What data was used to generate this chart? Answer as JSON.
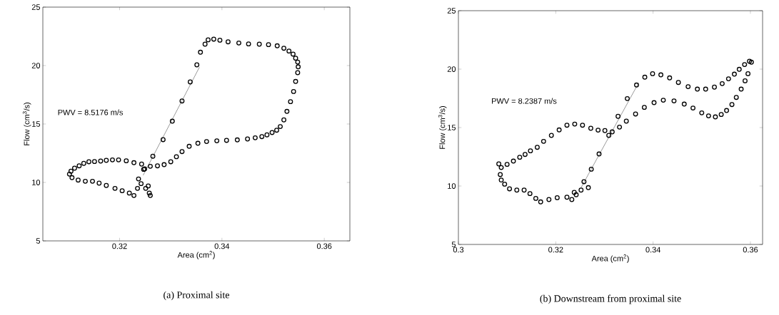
{
  "chart_data": [
    {
      "type": "scatter",
      "xlabel": "Area (cm$^{2}$)",
      "ylabel": "Flow (cm$^{3}$/s)",
      "xlim": [
        0.305,
        0.365
      ],
      "ylim": [
        5,
        25
      ],
      "xticks": [
        0.32,
        0.34,
        0.36
      ],
      "yticks": [
        5,
        10,
        15,
        20,
        25
      ],
      "series": [
        {
          "marker": "circle",
          "color": "#000000",
          "x": [
            0.3247,
            0.3265,
            0.3285,
            0.3303,
            0.3322,
            0.3338,
            0.3351,
            0.3358,
            0.3367,
            0.3373,
            0.3384,
            0.3396,
            0.3412,
            0.3433,
            0.3452,
            0.3473,
            0.3491,
            0.3508,
            0.3521,
            0.3531,
            0.3539,
            0.3544,
            0.3548,
            0.3549,
            0.3548,
            0.3544,
            0.354,
            0.3534,
            0.3527,
            0.3521,
            0.3514,
            0.3507,
            0.3498,
            0.3488,
            0.3478,
            0.3465,
            0.345,
            0.343,
            0.3409,
            0.339,
            0.337,
            0.3353,
            0.3336,
            0.3322,
            0.3311,
            0.33,
            0.3287,
            0.3274,
            0.326,
            0.3249,
            0.3243,
            0.3228,
            0.3213,
            0.3198,
            0.3186,
            0.3174,
            0.3163,
            0.3151,
            0.314,
            0.313,
            0.3121,
            0.3112,
            0.3105,
            0.3102,
            0.3107,
            0.3119,
            0.3133,
            0.3147,
            0.316,
            0.3174,
            0.3191,
            0.3205,
            0.3219,
            0.3228,
            0.3235,
            0.3242,
            0.3251,
            0.3258,
            0.3237,
            0.3256,
            0.326
          ],
          "values": [
            11.12,
            12.24,
            13.66,
            15.24,
            16.97,
            18.6,
            20.06,
            21.14,
            21.83,
            22.2,
            22.26,
            22.17,
            22.03,
            21.93,
            21.85,
            21.83,
            21.79,
            21.69,
            21.48,
            21.24,
            20.98,
            20.63,
            20.3,
            19.89,
            19.39,
            18.64,
            17.78,
            16.91,
            16.08,
            15.35,
            14.78,
            14.47,
            14.27,
            14.07,
            13.92,
            13.82,
            13.72,
            13.64,
            13.6,
            13.56,
            13.5,
            13.35,
            13.09,
            12.64,
            12.2,
            11.77,
            11.52,
            11.42,
            11.38,
            11.16,
            11.57,
            11.69,
            11.85,
            11.93,
            11.93,
            11.89,
            11.83,
            11.79,
            11.77,
            11.63,
            11.42,
            11.22,
            10.96,
            10.71,
            10.41,
            10.2,
            10.1,
            10.1,
            9.94,
            9.74,
            9.49,
            9.29,
            9.09,
            8.88,
            9.49,
            9.9,
            9.49,
            9.09,
            10.3,
            9.7,
            8.88
          ]
        },
        {
          "type": "line",
          "marker": "none",
          "color": "#000000",
          "x": [
            0.3246,
            0.3356
          ],
          "values": [
            10.61,
            19.86
          ]
        }
      ],
      "annotations": [
        "(a) Proximal site",
        "PWV = 8.5176 m/s"
      ]
    },
    {
      "type": "scatter",
      "xlabel": "Area (cm$^{2}$)",
      "ylabel": "Flow (cm$^{3}$/s)",
      "xlim": [
        0.3,
        0.3625
      ],
      "ylim": [
        5,
        25
      ],
      "xticks": [
        0.3,
        0.32,
        0.34,
        0.36
      ],
      "yticks": [
        5,
        10,
        15,
        20,
        25
      ],
      "series": [
        {
          "marker": "circle",
          "color": "#000000",
          "x": [
            0.3242,
            0.3258,
            0.3273,
            0.3289,
            0.3309,
            0.3328,
            0.3347,
            0.3366,
            0.3383,
            0.3399,
            0.3416,
            0.3434,
            0.3452,
            0.3472,
            0.3491,
            0.3508,
            0.3526,
            0.3542,
            0.3555,
            0.3567,
            0.3577,
            0.3588,
            0.3598,
            0.3602,
            0.3595,
            0.3589,
            0.3581,
            0.3571,
            0.3562,
            0.3551,
            0.354,
            0.3528,
            0.3514,
            0.35,
            0.3482,
            0.3464,
            0.3443,
            0.3421,
            0.3402,
            0.3382,
            0.3364,
            0.3345,
            0.3331,
            0.3316,
            0.3301,
            0.3287,
            0.3272,
            0.3255,
            0.3239,
            0.3223,
            0.3207,
            0.3191,
            0.3175,
            0.3162,
            0.3148,
            0.3137,
            0.3126,
            0.3113,
            0.31,
            0.3088,
            0.3083,
            0.3086,
            0.3088,
            0.3095,
            0.3105,
            0.312,
            0.3135,
            0.3147,
            0.3159,
            0.3169,
            0.3186,
            0.3203,
            0.3223,
            0.3238,
            0.3252,
            0.3267,
            0.3233
          ],
          "values": [
            9.25,
            10.37,
            11.44,
            12.74,
            14.33,
            15.96,
            17.48,
            18.64,
            19.31,
            19.61,
            19.51,
            19.25,
            18.86,
            18.5,
            18.29,
            18.29,
            18.46,
            18.76,
            19.17,
            19.57,
            19.98,
            20.39,
            20.67,
            20.59,
            19.61,
            19.0,
            18.29,
            17.58,
            16.97,
            16.46,
            16.12,
            15.91,
            16.0,
            16.26,
            16.67,
            17.01,
            17.28,
            17.34,
            17.13,
            16.73,
            16.16,
            15.55,
            15.04,
            14.63,
            14.74,
            14.78,
            14.94,
            15.2,
            15.3,
            15.2,
            14.8,
            14.33,
            13.82,
            13.31,
            13.01,
            12.7,
            12.46,
            12.13,
            11.85,
            11.58,
            11.89,
            10.98,
            10.51,
            10.16,
            9.76,
            9.65,
            9.65,
            9.35,
            8.94,
            8.64,
            8.84,
            9.0,
            9.04,
            9.45,
            9.65,
            9.86,
            8.84
          ]
        },
        {
          "type": "line",
          "marker": "none",
          "color": "#000000",
          "x": [
            0.3252,
            0.337
          ],
          "values": [
            9.86,
            18.8
          ]
        }
      ],
      "annotations": [
        "(b) Downstream from proximal site",
        "PWV = 8.2387 m/s"
      ]
    }
  ]
}
